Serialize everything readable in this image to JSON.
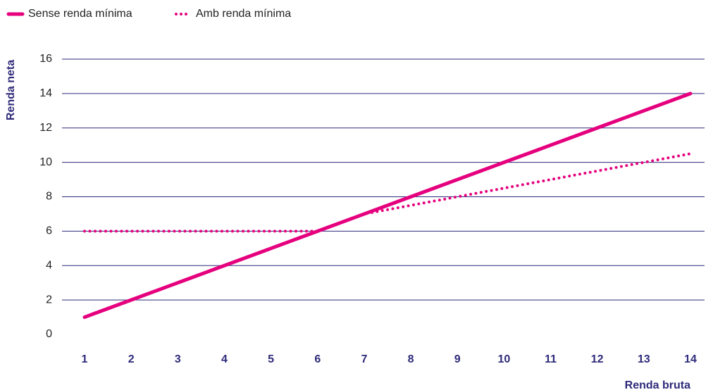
{
  "chart_data": {
    "type": "line",
    "x_label": "Renda bruta",
    "y_label": "Renda neta",
    "x": [
      1,
      2,
      3,
      4,
      5,
      6,
      7,
      8,
      9,
      10,
      11,
      12,
      13,
      14
    ],
    "series": [
      {
        "name": "Sense renda mínima",
        "color": "#e5007e",
        "style": "solid",
        "values": [
          1,
          2,
          3,
          4,
          5,
          6,
          7,
          8,
          9,
          10,
          11,
          12,
          13,
          14
        ]
      },
      {
        "name": "Amb renda mínima",
        "color": "#e5007e",
        "style": "dotted",
        "values": [
          6,
          6,
          6,
          6,
          6,
          6,
          7,
          7.5,
          8,
          8.5,
          9,
          9.5,
          10,
          10.5
        ]
      }
    ],
    "xlim": [
      1,
      14
    ],
    "xticks": [
      1,
      2,
      3,
      4,
      5,
      6,
      7,
      8,
      9,
      10,
      11,
      12,
      13,
      14
    ],
    "ylim": [
      0,
      16
    ],
    "yticks": [
      0,
      2,
      4,
      6,
      8,
      10,
      12,
      14,
      16
    ],
    "grid": true,
    "legend": "top-left"
  }
}
